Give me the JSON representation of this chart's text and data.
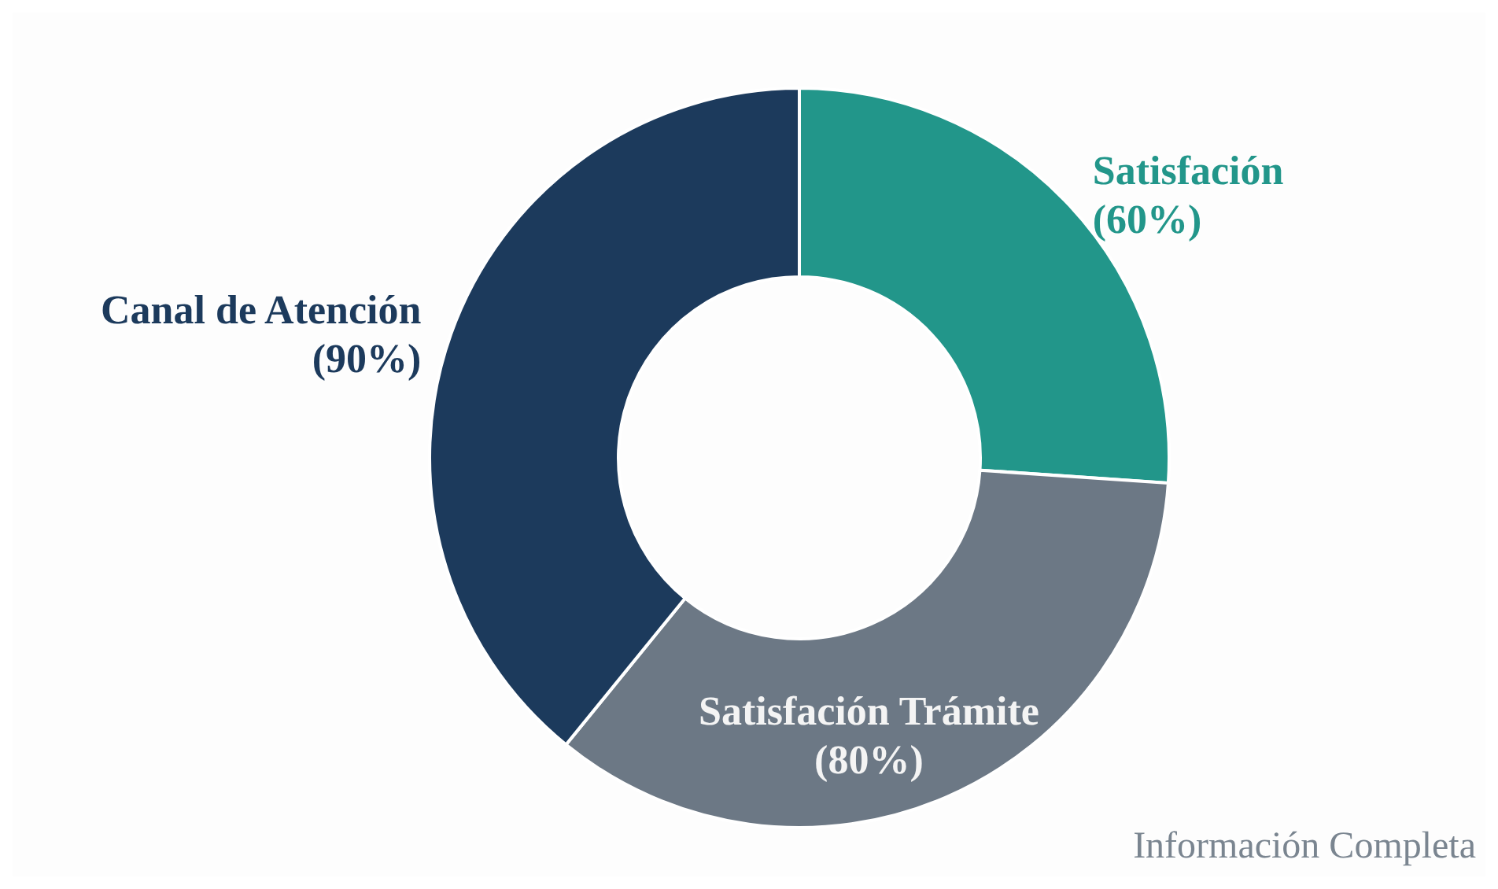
{
  "chart_data": {
    "type": "donut",
    "categories": [
      "Satisfación",
      "Satisfación Trámite",
      "Canal de Atención"
    ],
    "values": [
      60,
      80,
      90
    ],
    "value_labels": [
      "(60%)",
      "(80%)",
      "(90%)"
    ],
    "colors": [
      "#22968a",
      "#6c7885",
      "#1c3a5c"
    ],
    "annotations": [
      "Información Completa"
    ]
  }
}
